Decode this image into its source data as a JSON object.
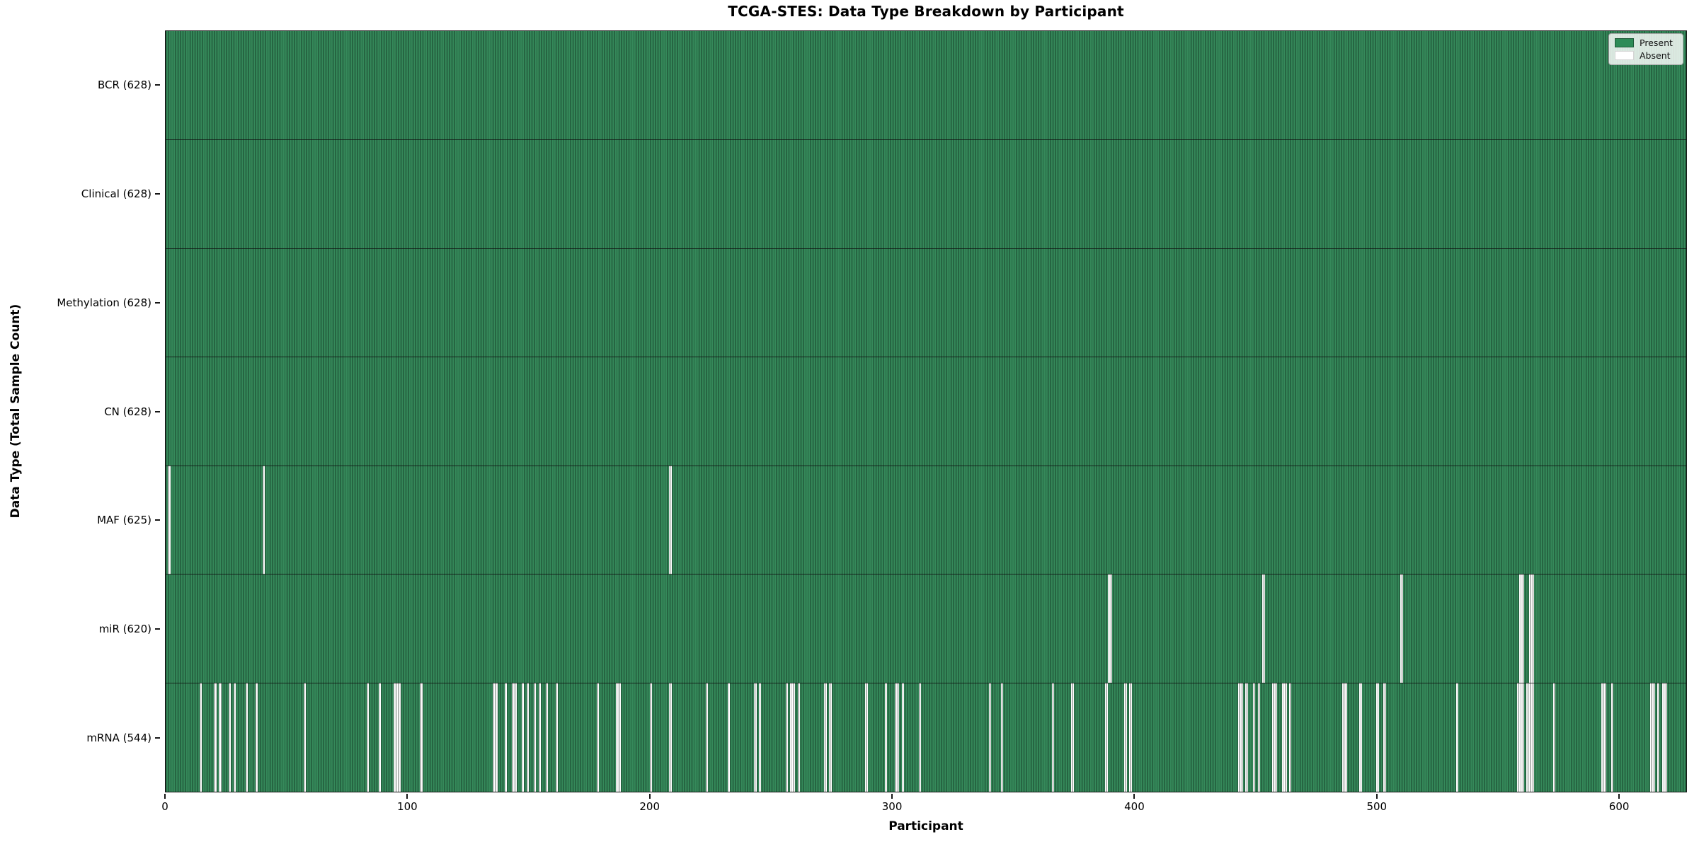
{
  "title": "TCGA-STES: Data Type Breakdown by Participant",
  "chart_data": {
    "type": "heatmap",
    "title": "TCGA-STES: Data Type Breakdown by Participant",
    "xlabel": "Participant",
    "ylabel": "Data Type (Total Sample Count)",
    "n_participants": 628,
    "x_ticks": [
      0,
      100,
      200,
      300,
      400,
      500,
      600
    ],
    "grid": false,
    "legend_position": "upper right",
    "legend": [
      {
        "label": "Present",
        "color": "#2E8B57"
      },
      {
        "label": "Absent",
        "color": "#FFFFFF"
      }
    ],
    "colors": {
      "present": "#2E8B57",
      "absent": "#FFFFFF",
      "bar_edge": "#0a140c"
    },
    "rows": [
      {
        "name": "BCR",
        "label": "BCR (628)",
        "total": 628,
        "absent": []
      },
      {
        "name": "Clinical",
        "label": "Clinical (628)",
        "total": 628,
        "absent": []
      },
      {
        "name": "Methylation",
        "label": "Methylation (628)",
        "total": 628,
        "absent": []
      },
      {
        "name": "CN",
        "label": "CN (628)",
        "total": 628,
        "absent": []
      },
      {
        "name": "MAF",
        "label": "MAF (625)",
        "total": 625,
        "absent": [
          1,
          40,
          208
        ]
      },
      {
        "name": "miR",
        "label": "miR (620)",
        "total": 620,
        "absent": [
          389,
          390,
          453,
          510,
          559,
          560,
          563,
          564
        ]
      },
      {
        "name": "mRNA",
        "label": "mRNA (544)",
        "total": 544,
        "absent": [
          14,
          20,
          22,
          26,
          28,
          33,
          37,
          57,
          83,
          88,
          94,
          95,
          96,
          105,
          135,
          136,
          140,
          143,
          144,
          147,
          149,
          152,
          154,
          157,
          161,
          178,
          186,
          187,
          200,
          208,
          223,
          232,
          243,
          245,
          256,
          258,
          259,
          261,
          272,
          274,
          289,
          297,
          301,
          302,
          304,
          311,
          340,
          345,
          366,
          374,
          388,
          396,
          398,
          443,
          444,
          446,
          449,
          451,
          457,
          458,
          461,
          462,
          464,
          486,
          487,
          493,
          500,
          503,
          533,
          558,
          559,
          560,
          562,
          563,
          564,
          573,
          593,
          594,
          597,
          613,
          614,
          616,
          618,
          619
        ]
      }
    ]
  }
}
